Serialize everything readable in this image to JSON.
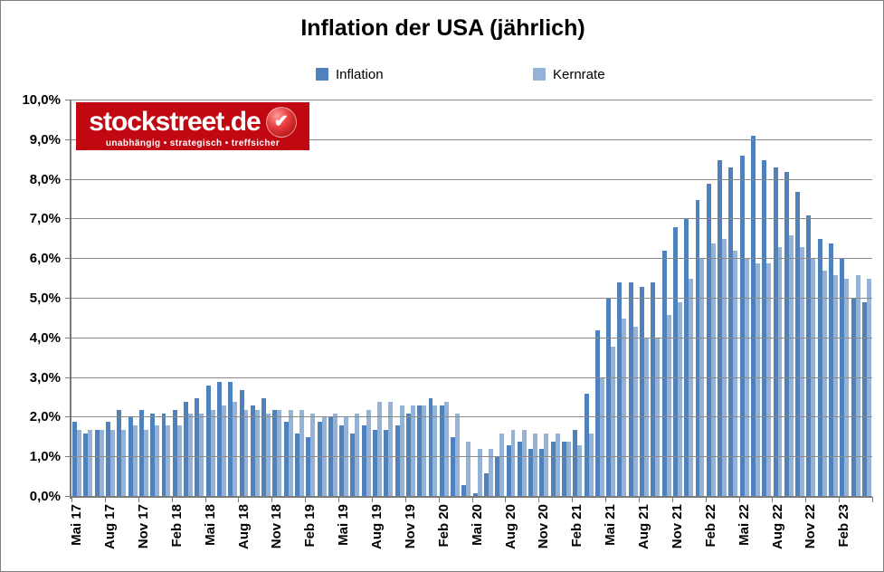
{
  "logo": {
    "name": "stockstreet.de",
    "tagline": "unabhängig • strategisch • treffsicher",
    "bg_color": "#c00712",
    "check_icon": "✔"
  },
  "colors": {
    "inflation": "#4F81BD",
    "kernrate": "#95B3D7",
    "gridline": "#8a8a8a",
    "axis": "#7a7a7a",
    "border": "#808080",
    "text": "#000000"
  },
  "chart_data": {
    "type": "bar",
    "title": "Inflation der USA (jährlich)",
    "xlabel": "",
    "ylabel": "",
    "grid": true,
    "legend_position": "top",
    "x_tick_interval": 3,
    "y_axis": {
      "min": 0,
      "max": 10,
      "step": 1,
      "tick_labels": [
        "0,0%",
        "1,0%",
        "2,0%",
        "3,0%",
        "4,0%",
        "5,0%",
        "6,0%",
        "7,0%",
        "8,0%",
        "9,0%",
        "10,0%"
      ]
    },
    "x": [
      "Mai 17",
      "Jun 17",
      "Jul 17",
      "Aug 17",
      "Sep 17",
      "Okt 17",
      "Nov 17",
      "Dez 17",
      "Jan 18",
      "Feb 18",
      "Mär 18",
      "Apr 18",
      "Mai 18",
      "Jun 18",
      "Jul 18",
      "Aug 18",
      "Sep 18",
      "Okt 18",
      "Nov 18",
      "Dez 18",
      "Jan 19",
      "Feb 19",
      "Mär 19",
      "Apr 19",
      "Mai 19",
      "Jun 19",
      "Jul 19",
      "Aug 19",
      "Sep 19",
      "Okt 19",
      "Nov 19",
      "Dez 19",
      "Jan 20",
      "Feb 20",
      "Mär 20",
      "Apr 20",
      "Mai 20",
      "Jun 20",
      "Jul 20",
      "Aug 20",
      "Sep 20",
      "Okt 20",
      "Nov 20",
      "Dez 20",
      "Jan 21",
      "Feb 21",
      "Mär 21",
      "Apr 21",
      "Mai 21",
      "Jun 21",
      "Jul 21",
      "Aug 21",
      "Sep 21",
      "Okt 21",
      "Nov 21",
      "Dez 21",
      "Jan 22",
      "Feb 22",
      "Mär 22",
      "Apr 22",
      "Mai 22",
      "Jun 22",
      "Jul 22",
      "Aug 22",
      "Sep 22",
      "Okt 22",
      "Nov 22",
      "Dez 22",
      "Jan 23",
      "Feb 23",
      "Mär 23",
      "Apr 23"
    ],
    "series": [
      {
        "name": "Inflation",
        "color": "#4F81BD",
        "values": [
          1.9,
          1.6,
          1.7,
          1.9,
          2.2,
          2.0,
          2.2,
          2.1,
          2.1,
          2.2,
          2.4,
          2.5,
          2.8,
          2.9,
          2.9,
          2.7,
          2.3,
          2.5,
          2.2,
          1.9,
          1.6,
          1.5,
          1.9,
          2.0,
          1.8,
          1.6,
          1.8,
          1.7,
          1.7,
          1.8,
          2.1,
          2.3,
          2.5,
          2.3,
          1.5,
          0.3,
          0.1,
          0.6,
          1.0,
          1.3,
          1.4,
          1.2,
          1.2,
          1.4,
          1.4,
          1.7,
          2.6,
          4.2,
          5.0,
          5.4,
          5.4,
          5.3,
          5.4,
          6.2,
          6.8,
          7.0,
          7.5,
          7.9,
          8.5,
          8.3,
          8.6,
          9.1,
          8.5,
          8.3,
          8.2,
          7.7,
          7.1,
          6.5,
          6.4,
          6.0,
          5.0,
          4.9
        ]
      },
      {
        "name": "Kernrate",
        "color": "#95B3D7",
        "values": [
          1.7,
          1.7,
          1.7,
          1.7,
          1.7,
          1.8,
          1.7,
          1.8,
          1.8,
          1.8,
          2.1,
          2.1,
          2.2,
          2.3,
          2.4,
          2.2,
          2.2,
          2.1,
          2.2,
          2.2,
          2.2,
          2.1,
          2.0,
          2.1,
          2.0,
          2.1,
          2.2,
          2.4,
          2.4,
          2.3,
          2.3,
          2.3,
          2.3,
          2.4,
          2.1,
          1.4,
          1.2,
          1.2,
          1.6,
          1.7,
          1.7,
          1.6,
          1.6,
          1.6,
          1.4,
          1.3,
          1.6,
          3.0,
          3.8,
          4.5,
          4.3,
          4.0,
          4.0,
          4.6,
          4.9,
          5.5,
          6.0,
          6.4,
          6.5,
          6.2,
          6.0,
          5.9,
          5.9,
          6.3,
          6.6,
          6.3,
          6.0,
          5.7,
          5.6,
          5.5,
          5.6,
          5.5
        ]
      }
    ]
  }
}
